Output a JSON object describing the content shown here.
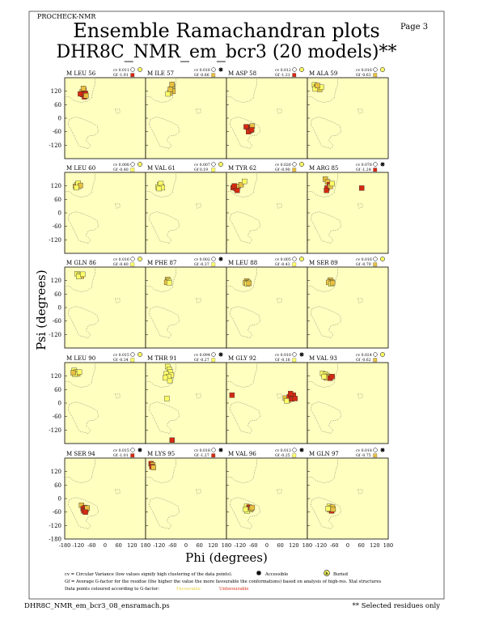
{
  "header": {
    "program": "PROCHECK-NMR",
    "page_label": "Page  3",
    "title": "Ensemble Ramachandran plots",
    "subtitle": "DHR8C_NMR_em_bcr3 (20 models)**"
  },
  "footer": {
    "filename": "DHR8C_NMR_em_bcr3_08_ensramach.ps",
    "selected_note": "** Selected residues only"
  },
  "legend": {
    "cv_text": "cv = Circular Variance (low values signify high clustering of the data points).",
    "accessible": "Accessible",
    "buried": "Buried",
    "gf_text": "Gf = Average G-factor for the residue (the higher the value the more favourable the conformations) based on analysis of high-res. Xtal structures",
    "colour_text": "Data points coloured according to G-factor:",
    "favourable": "Favourable",
    "unfavourable": "Unfavourable"
  },
  "colors": {
    "panel_bg": "#ffffc0",
    "favourable": "#ffff66",
    "mid": "#e8c040",
    "unfavourable": "#d42a10",
    "region_outline": "#555555"
  },
  "chart_data": {
    "type": "scatter",
    "xlabel": "Phi (degrees)",
    "ylabel": "Psi (degrees)",
    "xlim": [
      -180,
      180
    ],
    "ylim": [
      -180,
      180
    ],
    "yticks": [
      120,
      60,
      0,
      -60,
      -120
    ],
    "yticks_bottom": [
      120,
      60,
      0,
      -60,
      -120,
      -180
    ],
    "xtick_labels": [
      "-180",
      "-120",
      "-60",
      "0",
      "60",
      "120",
      "180"
    ],
    "panels": [
      {
        "label": "M LEU 56",
        "cv": "cv 0.011",
        "gf": "Gf -1.91",
        "sym": "buried",
        "points": [
          [
            -102,
            118,
            1
          ],
          [
            -95,
            125,
            2
          ],
          [
            -88,
            110,
            2
          ],
          [
            -100,
            105,
            2
          ],
          [
            -92,
            95,
            2
          ],
          [
            -110,
            108,
            2
          ],
          [
            -85,
            100,
            1
          ],
          [
            -97,
            132,
            1
          ]
        ]
      },
      {
        "label": "M ILE 57",
        "cv": "cv 0.016",
        "gf": "Gf -0.66",
        "sym": "accessible",
        "points": [
          [
            -60,
            142,
            1
          ],
          [
            -65,
            130,
            0
          ],
          [
            -58,
            120,
            1
          ],
          [
            -72,
            112,
            1
          ],
          [
            -80,
            108,
            0
          ],
          [
            -70,
            128,
            1
          ],
          [
            -62,
            150,
            1
          ]
        ]
      },
      {
        "label": "M ASP 58",
        "cv": "cv 0.012",
        "gf": "Gf -1.31",
        "sym": "buried",
        "points": [
          [
            -85,
            -40,
            2
          ],
          [
            -78,
            -48,
            2
          ],
          [
            -70,
            -45,
            2
          ],
          [
            -92,
            -38,
            2
          ],
          [
            -75,
            -55,
            2
          ],
          [
            -65,
            -35,
            1
          ],
          [
            -82,
            -60,
            2
          ],
          [
            -68,
            -52,
            2
          ]
        ]
      },
      {
        "label": "M ALA 59",
        "cv": "cv 0.016",
        "gf": "Gf -0.63",
        "sym": "buried",
        "points": [
          [
            -148,
            148,
            0
          ],
          [
            -140,
            140,
            1
          ],
          [
            -132,
            135,
            0
          ],
          [
            -125,
            128,
            1
          ],
          [
            -118,
            138,
            0
          ],
          [
            -145,
            130,
            0
          ],
          [
            -135,
            145,
            1
          ]
        ]
      },
      {
        "label": "M LEU 60",
        "cv": "cv 0.008",
        "gf": "Gf -0.40",
        "sym": "buried",
        "points": [
          [
            -125,
            125,
            0
          ],
          [
            -118,
            118,
            0
          ],
          [
            -132,
            118,
            1
          ],
          [
            -120,
            132,
            0
          ],
          [
            -110,
            122,
            1
          ],
          [
            -128,
            112,
            0
          ]
        ]
      },
      {
        "label": "M VAL 61",
        "cv": "cv 0.007",
        "gf": "Gf 0.19",
        "sym": "buried",
        "points": [
          [
            -118,
            125,
            0
          ],
          [
            -110,
            118,
            0
          ],
          [
            -125,
            115,
            0
          ],
          [
            -112,
            130,
            0
          ],
          [
            -105,
            112,
            0
          ],
          [
            -120,
            108,
            0
          ]
        ]
      },
      {
        "label": "M TYR 62",
        "cv": "cv 0.026",
        "gf": "Gf -0.90",
        "sym": "buried",
        "points": [
          [
            -150,
            112,
            2
          ],
          [
            -138,
            108,
            2
          ],
          [
            -128,
            118,
            1
          ],
          [
            -145,
            120,
            2
          ],
          [
            -115,
            125,
            1
          ],
          [
            -100,
            140,
            0
          ],
          [
            -132,
            100,
            2
          ]
        ]
      },
      {
        "label": "M ARG 85",
        "cv": "cv 0.078",
        "gf": "Gf -1.24",
        "sym": "accessible",
        "points": [
          [
            -100,
            150,
            1
          ],
          [
            -90,
            138,
            1
          ],
          [
            -82,
            125,
            2
          ],
          [
            -92,
            110,
            2
          ],
          [
            -78,
            118,
            1
          ],
          [
            -95,
            100,
            2
          ],
          [
            -70,
            130,
            0
          ],
          [
            62,
            110,
            2
          ]
        ]
      },
      {
        "label": "M GLN 86",
        "cv": "cv 0.016",
        "gf": "Gf -0.40",
        "sym": "buried",
        "points": [
          [
            -125,
            150,
            0
          ],
          [
            -115,
            145,
            0
          ],
          [
            -105,
            140,
            1
          ],
          [
            -118,
            138,
            0
          ],
          [
            -100,
            148,
            0
          ]
        ]
      },
      {
        "label": "M PHE 87",
        "cv": "cv 0.002",
        "gf": "Gf -0.37",
        "sym": "accessible",
        "points": [
          [
            -82,
            125,
            1
          ],
          [
            -78,
            118,
            0
          ],
          [
            -86,
            112,
            1
          ],
          [
            -75,
            110,
            0
          ]
        ]
      },
      {
        "label": "M LEU 88",
        "cv": "cv 0.005",
        "gf": "Gf -0.43",
        "sym": "buried",
        "points": [
          [
            -90,
            118,
            1
          ],
          [
            -84,
            112,
            0
          ],
          [
            -95,
            110,
            1
          ],
          [
            -88,
            105,
            0
          ],
          [
            -80,
            108,
            1
          ]
        ]
      },
      {
        "label": "M SER 89",
        "cv": "cv 0.016",
        "gf": "Gf -0.79",
        "sym": "buried",
        "points": [
          [
            -78,
            122,
            1
          ],
          [
            -72,
            115,
            1
          ],
          [
            -85,
            112,
            1
          ],
          [
            -75,
            105,
            0
          ],
          [
            -68,
            110,
            1
          ]
        ]
      },
      {
        "label": "M LEU 90",
        "cv": "cv 0.015",
        "gf": "Gf -0.34",
        "sym": "buried",
        "points": [
          [
            -138,
            145,
            0
          ],
          [
            -130,
            138,
            0
          ],
          [
            -122,
            130,
            1
          ],
          [
            -135,
            128,
            0
          ],
          [
            -115,
            138,
            0
          ],
          [
            -142,
            135,
            1
          ]
        ]
      },
      {
        "label": "M THR 91",
        "cv": "cv 0.094",
        "gf": "Gf -0.27",
        "sym": "accessible",
        "points": [
          [
            -82,
            162,
            0
          ],
          [
            -75,
            150,
            0
          ],
          [
            -70,
            138,
            0
          ],
          [
            -88,
            130,
            0
          ],
          [
            -65,
            125,
            0
          ],
          [
            -78,
            118,
            0
          ],
          [
            -92,
            112,
            0
          ],
          [
            -72,
            100,
            0
          ],
          [
            -85,
            20,
            0
          ],
          [
            -62,
            -165,
            2
          ]
        ]
      },
      {
        "label": "M GLY 92",
        "cv": "cv 0.010",
        "gf": "Gf -0.18",
        "sym": "accessible",
        "points": [
          [
            -155,
            35,
            2
          ],
          [
            82,
            22,
            1
          ],
          [
            95,
            12,
            0
          ],
          [
            100,
            28,
            2
          ],
          [
            110,
            18,
            2
          ],
          [
            118,
            35,
            2
          ],
          [
            105,
            42,
            2
          ],
          [
            88,
            10,
            0
          ],
          [
            125,
            20,
            2
          ]
        ]
      },
      {
        "label": "M VAL 93",
        "cv": "cv 0.024",
        "gf": "Gf -0.62",
        "sym": "buried",
        "points": [
          [
            -112,
            132,
            0
          ],
          [
            -100,
            128,
            0
          ],
          [
            -92,
            122,
            0
          ],
          [
            -85,
            118,
            1
          ],
          [
            -95,
            112,
            1
          ],
          [
            -78,
            110,
            2
          ],
          [
            -70,
            118,
            2
          ],
          [
            -105,
            118,
            0
          ]
        ]
      },
      {
        "label": "M SER 94",
        "cv": "cv 0.015",
        "gf": "Gf -1.01",
        "sym": "accessible",
        "points": [
          [
            -105,
            -30,
            1
          ],
          [
            -98,
            -45,
            2
          ],
          [
            -90,
            -40,
            2
          ],
          [
            -85,
            -50,
            2
          ],
          [
            -95,
            -55,
            2
          ],
          [
            -80,
            -42,
            1
          ],
          [
            -88,
            -60,
            2
          ]
        ]
      },
      {
        "label": "M LYS 95",
        "cv": "cv 0.018",
        "gf": "Gf -1.27",
        "sym": "accessible",
        "points": [
          [
            -155,
            155,
            2
          ],
          [
            -148,
            150,
            1
          ],
          [
            -152,
            142,
            2
          ],
          [
            -145,
            138,
            1
          ]
        ]
      },
      {
        "label": "M VAL 96",
        "cv": "cv 0.013",
        "gf": "Gf -0.25",
        "sym": "accessible",
        "points": [
          [
            -90,
            -35,
            0
          ],
          [
            -82,
            -42,
            1
          ],
          [
            -75,
            -50,
            0
          ],
          [
            -88,
            -55,
            0
          ],
          [
            -78,
            -38,
            2
          ],
          [
            -70,
            -45,
            1
          ],
          [
            -95,
            -48,
            0
          ],
          [
            -65,
            -40,
            1
          ]
        ]
      },
      {
        "label": "M GLN 97",
        "cv": "cv 0.018",
        "gf": "Gf -0.75",
        "sym": "accessible",
        "points": [
          [
            -82,
            -35,
            0
          ],
          [
            -75,
            -42,
            1
          ],
          [
            -68,
            -38,
            1
          ],
          [
            -80,
            -50,
            1
          ],
          [
            -72,
            -55,
            2
          ],
          [
            -65,
            -48,
            1
          ],
          [
            -88,
            -45,
            0
          ]
        ]
      }
    ]
  }
}
